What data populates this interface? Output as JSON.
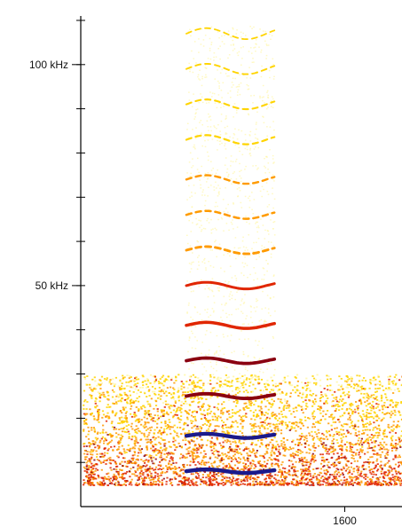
{
  "chart_data": {
    "type": "heatmap",
    "title": "",
    "xlabel": "",
    "ylabel": "",
    "y_unit": "kHz",
    "ylim": [
      0,
      111
    ],
    "y_ticks": [
      {
        "value": 100,
        "label": "100 kHz"
      },
      {
        "value": 50,
        "label": "50 kHz"
      }
    ],
    "y_minor_tick_step": 10,
    "x_ticks": [
      {
        "value": 1600,
        "label": "1600"
      }
    ],
    "xlim": [
      1300,
      1665
    ],
    "grid": false,
    "colormap": [
      "#ffffff",
      "#fff7a8",
      "#ffd400",
      "#ff9a00",
      "#e02600",
      "#8a0010",
      "#1a1a8c"
    ],
    "background_noise_band_khz": [
      5,
      30
    ],
    "call": {
      "start_x": 1420,
      "end_x": 1520,
      "harmonics_khz": [
        8,
        16,
        25,
        33,
        41,
        50,
        58,
        66,
        74,
        83,
        91,
        99,
        107
      ],
      "harmonic_intensity": [
        1.0,
        0.95,
        0.8,
        0.72,
        0.65,
        0.5,
        0.45,
        0.35,
        0.3,
        0.22,
        0.2,
        0.15,
        0.1
      ]
    }
  }
}
